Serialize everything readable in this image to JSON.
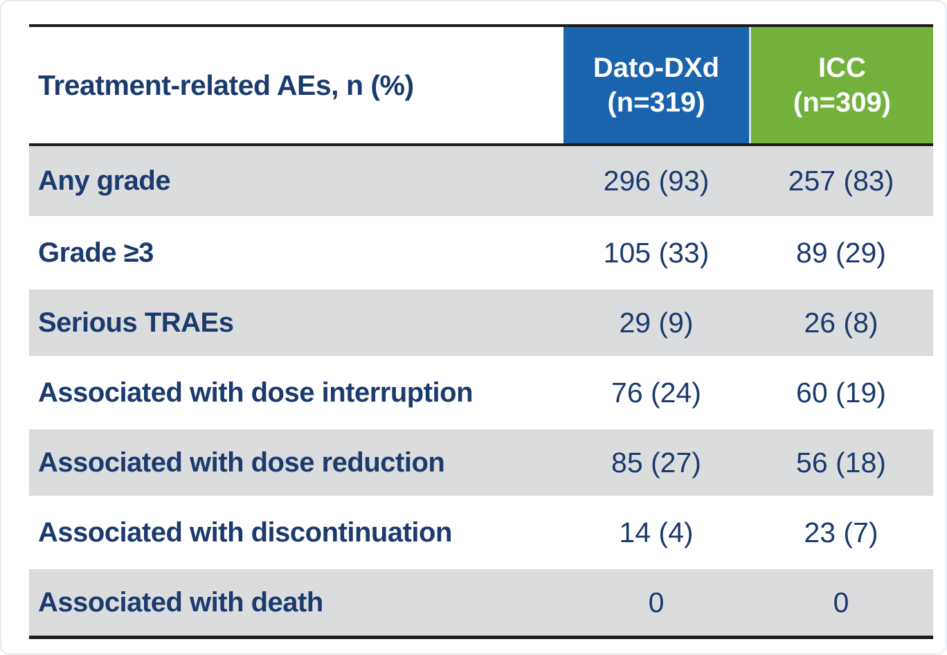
{
  "colors": {
    "dato_header_bg": "#1a63ad",
    "icc_header_bg": "#71b13c",
    "row_alt_bg": "#dbdcde",
    "text_navy": "#1b3a6d",
    "border_black": "#1b1b1b"
  },
  "table": {
    "header": {
      "row_label": "Treatment-related AEs, n (%)",
      "dato": {
        "name": "Dato-DXd",
        "n": "(n=319)"
      },
      "icc": {
        "name": "ICC",
        "n": "(n=309)"
      }
    },
    "rows": [
      {
        "label": "Any grade",
        "dato": "296 (93)",
        "icc": "257 (83)"
      },
      {
        "label": "Grade ≥3",
        "dato": "105 (33)",
        "icc": "89 (29)"
      },
      {
        "label": "Serious TRAEs",
        "dato": "29 (9)",
        "icc": "26 (8)"
      },
      {
        "label": "Associated with dose interruption",
        "dato": "76 (24)",
        "icc": "60 (19)"
      },
      {
        "label": "Associated with dose reduction",
        "dato": "85 (27)",
        "icc": "56 (18)"
      },
      {
        "label": "Associated with discontinuation",
        "dato": "14 (4)",
        "icc": "23 (7)"
      },
      {
        "label": "Associated with death",
        "dato": "0",
        "icc": "0"
      }
    ]
  },
  "chart_data": {
    "type": "table",
    "title": "Treatment-related AEs, n (%)",
    "columns": [
      "Treatment-related AEs, n (%)",
      "Dato-DXd (n=319)",
      "ICC (n=309)"
    ],
    "rows": [
      [
        "Any grade",
        "296 (93)",
        "257 (83)"
      ],
      [
        "Grade ≥3",
        "105 (33)",
        "89 (29)"
      ],
      [
        "Serious TRAEs",
        "29 (9)",
        "26 (8)"
      ],
      [
        "Associated with dose interruption",
        "76 (24)",
        "60 (19)"
      ],
      [
        "Associated with dose reduction",
        "85 (27)",
        "56 (18)"
      ],
      [
        "Associated with discontinuation",
        "14 (4)",
        "23 (7)"
      ],
      [
        "Associated with death",
        "0",
        "0"
      ]
    ]
  }
}
